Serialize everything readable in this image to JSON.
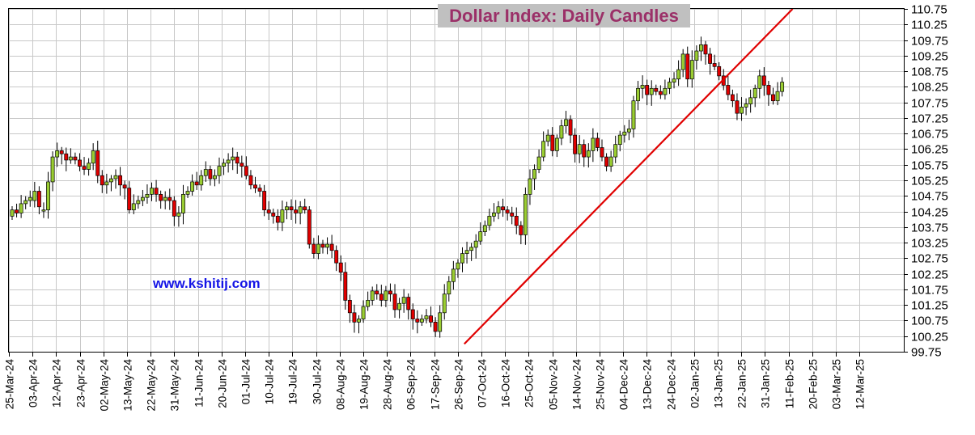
{
  "chart_data": {
    "type": "candlestick",
    "title": "Dollar Index: Daily Candles",
    "watermark": "www.kshitij.com",
    "ylim": [
      99.75,
      110.75
    ],
    "ytick_step": 0.5,
    "yticks": [
      "110.75",
      "110.25",
      "109.75",
      "109.25",
      "108.75",
      "108.25",
      "107.75",
      "107.25",
      "106.75",
      "106.25",
      "105.75",
      "105.25",
      "104.75",
      "104.25",
      "103.75",
      "103.25",
      "102.75",
      "102.25",
      "101.75",
      "101.25",
      "100.75",
      "100.25",
      "99.75"
    ],
    "xticks": [
      "25-Mar-24",
      "03-Apr-24",
      "12-Apr-24",
      "23-Apr-24",
      "02-May-24",
      "13-May-24",
      "22-May-24",
      "31-May-24",
      "11-Jun-24",
      "20-Jun-24",
      "01-Jul-24",
      "10-Jul-24",
      "19-Jul-24",
      "30-Jul-24",
      "08-Aug-24",
      "19-Aug-24",
      "28-Aug-24",
      "06-Sep-24",
      "17-Sep-24",
      "26-Sep-24",
      "07-Oct-24",
      "16-Oct-24",
      "25-Oct-24",
      "05-Nov-24",
      "14-Nov-24",
      "25-Nov-24",
      "04-Dec-24",
      "13-Dec-24",
      "24-Dec-24",
      "02-Jan-25",
      "13-Jan-25",
      "22-Jan-25",
      "31-Jan-25",
      "11-Feb-25",
      "20-Feb-25",
      "03-Mar-25",
      "12-Mar-25"
    ],
    "grid": true,
    "up_color": "#9acd32",
    "down_color": "#e00000",
    "trendline": {
      "color": "#e00000",
      "start": {
        "x": "26-Sep-24",
        "y": 100.0
      },
      "end": {
        "x": "11-Feb-25",
        "y": 110.75
      }
    },
    "closes": [
      104.3,
      104.2,
      104.5,
      104.6,
      104.7,
      104.9,
      104.4,
      104.3,
      105.2,
      106.0,
      106.2,
      106.1,
      105.9,
      106.0,
      105.9,
      105.7,
      105.6,
      105.8,
      106.2,
      105.4,
      105.1,
      105.2,
      105.3,
      105.4,
      105.1,
      105.0,
      104.3,
      104.5,
      104.6,
      104.7,
      104.8,
      105.0,
      104.8,
      104.6,
      104.7,
      104.6,
      104.1,
      104.2,
      104.8,
      104.9,
      105.2,
      105.1,
      105.4,
      105.6,
      105.3,
      105.4,
      105.7,
      105.8,
      105.9,
      106.0,
      105.8,
      105.7,
      105.4,
      105.1,
      105.0,
      104.9,
      104.3,
      104.2,
      104.1,
      103.9,
      104.3,
      104.4,
      104.3,
      104.2,
      104.4,
      104.3,
      103.2,
      102.9,
      103.2,
      103.1,
      103.2,
      103.0,
      102.6,
      102.3,
      101.4,
      101.0,
      100.7,
      100.8,
      101.2,
      101.4,
      101.7,
      101.6,
      101.4,
      101.7,
      101.6,
      101.1,
      101.3,
      101.5,
      101.1,
      100.8,
      100.7,
      100.8,
      100.9,
      100.7,
      100.4,
      101.0,
      101.6,
      102.0,
      102.4,
      102.6,
      102.9,
      103.0,
      103.1,
      103.3,
      103.6,
      103.8,
      104.1,
      104.2,
      104.4,
      104.3,
      104.2,
      104.1,
      103.8,
      103.5,
      104.8,
      105.3,
      105.6,
      106.0,
      106.5,
      106.7,
      106.2,
      106.6,
      107.0,
      107.2,
      106.7,
      106.1,
      106.4,
      106.0,
      106.2,
      106.6,
      106.3,
      106.0,
      105.7,
      106.0,
      106.4,
      106.7,
      106.8,
      106.9,
      107.8,
      108.2,
      108.3,
      108.0,
      108.2,
      108.1,
      108.0,
      108.2,
      108.4,
      108.5,
      108.8,
      109.3,
      108.5,
      109.1,
      109.4,
      109.6,
      109.3,
      109.0,
      108.9,
      108.6,
      108.3,
      108.0,
      107.8,
      107.4,
      107.6,
      107.7,
      107.9,
      108.2,
      108.6,
      108.3,
      108.0,
      107.8,
      108.1,
      108.4
    ],
    "opens": [
      104.1,
      104.3,
      104.2,
      104.5,
      104.6,
      104.6,
      104.9,
      104.3,
      104.3,
      105.2,
      106.0,
      106.2,
      106.1,
      105.9,
      106.0,
      105.9,
      105.7,
      105.6,
      105.8,
      106.2,
      105.4,
      105.1,
      105.2,
      105.3,
      105.4,
      105.1,
      105.0,
      104.3,
      104.5,
      104.6,
      104.7,
      104.8,
      105.0,
      104.8,
      104.6,
      104.7,
      104.6,
      104.1,
      104.2,
      104.8,
      104.9,
      105.2,
      105.1,
      105.4,
      105.6,
      105.3,
      105.4,
      105.7,
      105.8,
      105.9,
      106.0,
      105.8,
      105.7,
      105.4,
      105.1,
      105.0,
      104.9,
      104.3,
      104.2,
      104.1,
      103.9,
      104.3,
      104.4,
      104.3,
      104.2,
      104.4,
      104.3,
      103.2,
      102.9,
      103.2,
      103.1,
      103.2,
      103.0,
      102.6,
      102.3,
      101.4,
      101.0,
      100.7,
      100.8,
      101.2,
      101.4,
      101.7,
      101.6,
      101.4,
      101.7,
      101.6,
      101.1,
      101.3,
      101.5,
      101.1,
      100.8,
      100.7,
      100.8,
      100.9,
      100.7,
      100.4,
      101.0,
      101.6,
      102.0,
      102.4,
      102.6,
      102.9,
      103.0,
      103.1,
      103.3,
      103.6,
      103.8,
      104.1,
      104.2,
      104.4,
      104.3,
      104.2,
      104.1,
      103.8,
      103.5,
      104.8,
      105.3,
      105.6,
      106.0,
      106.5,
      106.7,
      106.2,
      106.6,
      107.0,
      107.2,
      106.7,
      106.1,
      106.4,
      106.0,
      106.2,
      106.6,
      106.3,
      106.0,
      105.7,
      106.0,
      106.4,
      106.7,
      106.8,
      106.9,
      107.8,
      108.2,
      108.3,
      108.0,
      108.2,
      108.1,
      108.0,
      108.2,
      108.4,
      108.5,
      108.8,
      109.3,
      108.5,
      109.1,
      109.4,
      109.6,
      109.3,
      109.0,
      108.9,
      108.6,
      108.3,
      108.0,
      107.8,
      107.4,
      107.6,
      107.7,
      107.9,
      108.2,
      108.6,
      108.3,
      108.0,
      107.8,
      108.1
    ]
  }
}
